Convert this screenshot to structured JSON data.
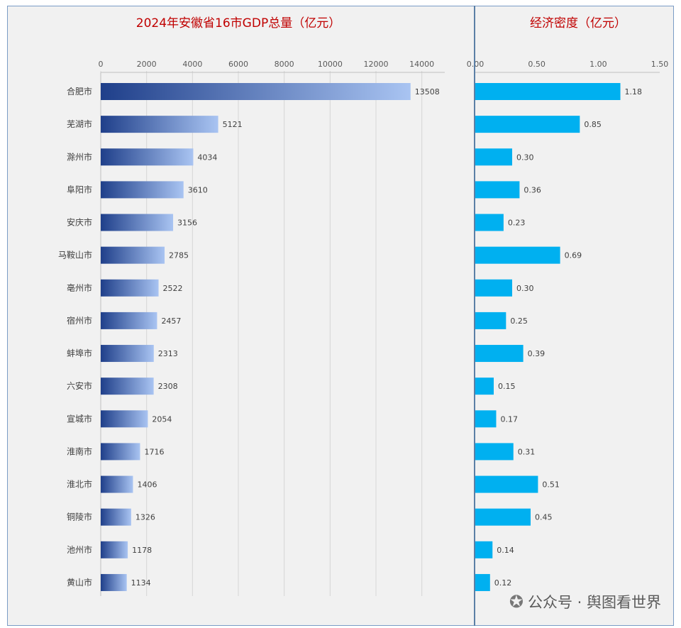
{
  "chart_data": [
    {
      "type": "bar",
      "orientation": "horizontal",
      "title": "2024年安徽省16市GDP总量（亿元）",
      "categories": [
        "合肥市",
        "芜湖市",
        "滁州市",
        "阜阳市",
        "安庆市",
        "马鞍山市",
        "亳州市",
        "宿州市",
        "蚌埠市",
        "六安市",
        "宣城市",
        "淮南市",
        "淮北市",
        "铜陵市",
        "池州市",
        "黄山市"
      ],
      "values": [
        13508,
        5121,
        4034,
        3610,
        3156,
        2785,
        2522,
        2457,
        2313,
        2308,
        2054,
        1716,
        1406,
        1326,
        1178,
        1134
      ],
      "value_labels": [
        "13508",
        "5121",
        "4034",
        "3610",
        "3156",
        "2785",
        "2522",
        "2457",
        "2313",
        "2308",
        "2054",
        "1716",
        "1406",
        "1326",
        "1178",
        "1134"
      ],
      "xlim": [
        0,
        15000
      ],
      "ticks": [
        0,
        2000,
        4000,
        6000,
        8000,
        10000,
        12000,
        14000
      ],
      "tick_labels": [
        "0",
        "2000",
        "4000",
        "6000",
        "8000",
        "10000",
        "12000",
        "14000"
      ],
      "bar_color_dark": "#1f3f8a",
      "bar_color_light": "#a9c4f2",
      "gridlines": true,
      "axis_position": "top"
    },
    {
      "type": "bar",
      "orientation": "horizontal",
      "title": "经济密度（亿元）",
      "categories": [
        "合肥市",
        "芜湖市",
        "滁州市",
        "阜阳市",
        "安庆市",
        "马鞍山市",
        "亳州市",
        "宿州市",
        "蚌埠市",
        "六安市",
        "宣城市",
        "淮南市",
        "淮北市",
        "铜陵市",
        "池州市",
        "黄山市"
      ],
      "values": [
        1.18,
        0.85,
        0.3,
        0.36,
        0.23,
        0.69,
        0.3,
        0.25,
        0.39,
        0.15,
        0.17,
        0.31,
        0.51,
        0.45,
        0.14,
        0.12
      ],
      "value_labels": [
        "1.18",
        "0.85",
        "0.30",
        "0.36",
        "0.23",
        "0.69",
        "0.30",
        "0.25",
        "0.39",
        "0.15",
        "0.17",
        "0.31",
        "0.51",
        "0.45",
        "0.14",
        "0.12"
      ],
      "xlim": [
        0,
        1.5
      ],
      "ticks": [
        0,
        0.5,
        1.0,
        1.5
      ],
      "tick_labels": [
        "0.00",
        "0.50",
        "1.00",
        "1.50"
      ],
      "bar_color": "#00b0f0",
      "gridlines": false,
      "axis_position": "top"
    }
  ],
  "watermark": {
    "text": "公众号 · 舆图看世界"
  },
  "colors": {
    "title": "#c00000",
    "panel_bg": "#f1f1f1",
    "divider": "#5b7fa6"
  }
}
